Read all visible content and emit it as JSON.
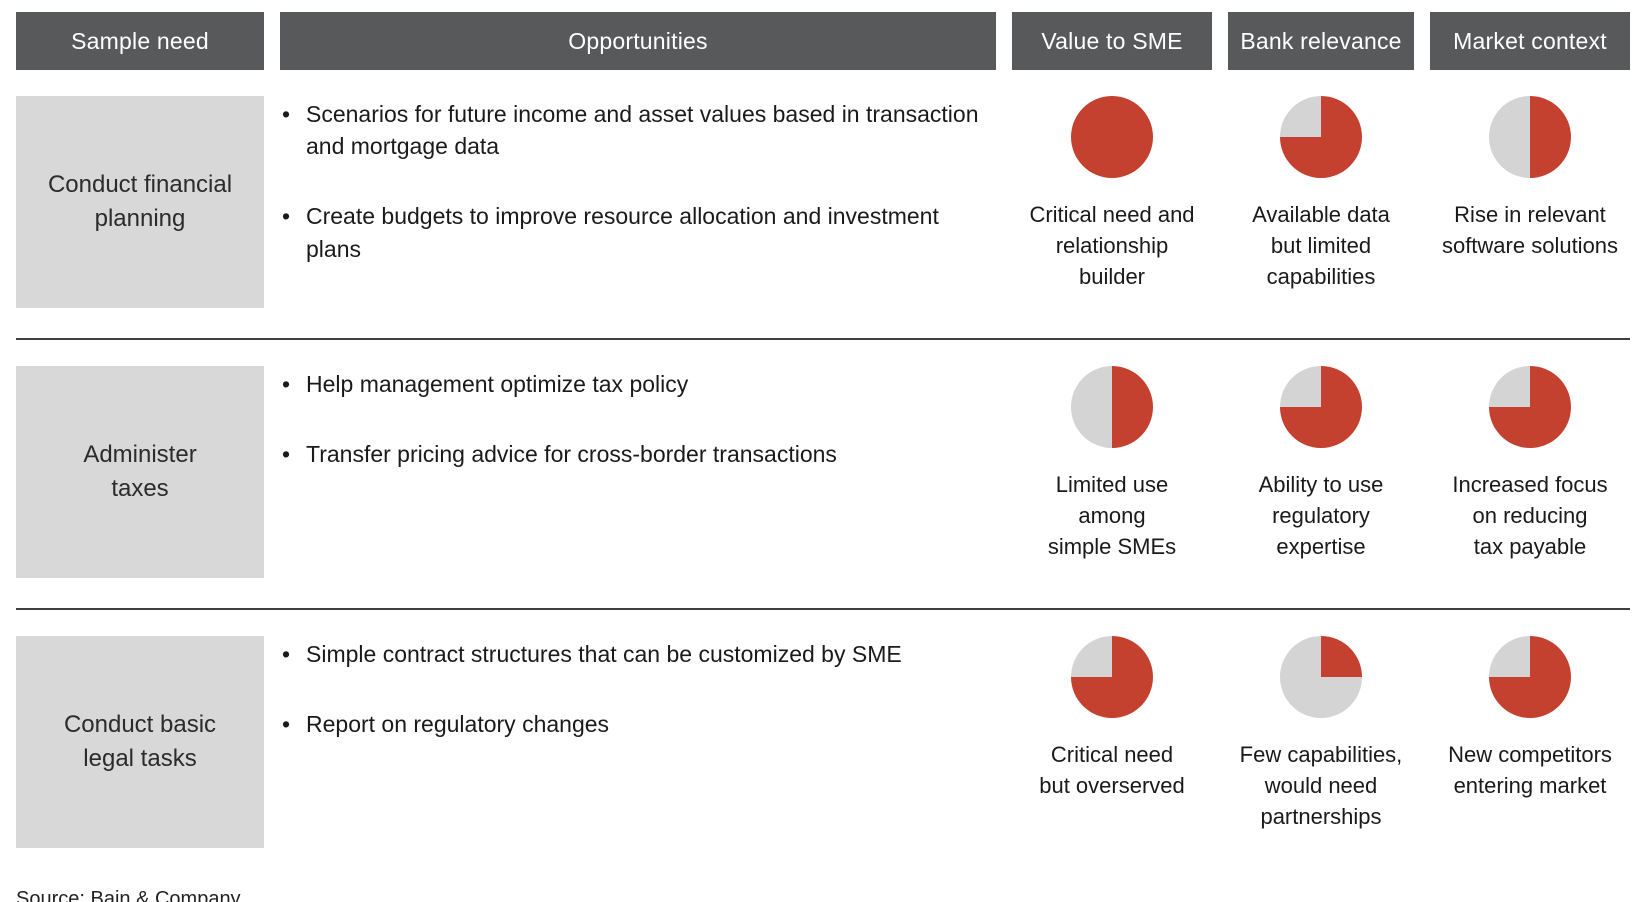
{
  "colors": {
    "accent": "#c4402f",
    "pie_gray": "#d4d4d4",
    "header_bg": "#58595b",
    "need_bg": "#d8d8d8"
  },
  "header": {
    "columns": [
      "Sample need",
      "Opportunities",
      "Value to SME",
      "Bank relevance",
      "Market context"
    ]
  },
  "rows": [
    {
      "need": "Conduct financial\nplanning",
      "bullets": [
        "Scenarios for future income and asset values based in transaction and mortgage data",
        "Create budgets to improve resource allocation and investment plans"
      ],
      "value_to_sme": {
        "fill": 1,
        "caption": "Critical need and\nrelationship\nbuilder"
      },
      "bank_relevance": {
        "fill": 0.75,
        "caption": "Available data\nbut limited\ncapabilities"
      },
      "market_context": {
        "fill": 0.5,
        "caption": "Rise in relevant\nsoftware solutions"
      }
    },
    {
      "need": "Administer\ntaxes",
      "bullets": [
        "Help management optimize tax policy",
        "Transfer pricing advice for cross-border transactions"
      ],
      "value_to_sme": {
        "fill": 0.5,
        "caption": "Limited use\namong\nsimple SMEs"
      },
      "bank_relevance": {
        "fill": 0.75,
        "caption": "Ability to use\nregulatory\nexpertise"
      },
      "market_context": {
        "fill": 0.75,
        "caption": "Increased focus\non reducing\ntax payable"
      }
    },
    {
      "need": "Conduct basic\nlegal tasks",
      "bullets": [
        "Simple contract structures that can be customized by SME",
        "Report on regulatory changes"
      ],
      "value_to_sme": {
        "fill": 0.75,
        "caption": "Critical need\nbut overserved"
      },
      "bank_relevance": {
        "fill": 0.25,
        "caption": "Few capabilities,\nwould need\npartnerships"
      },
      "market_context": {
        "fill": 0.75,
        "caption": "New competitors\nentering market"
      }
    }
  ],
  "source": "Source: Bain & Company"
}
